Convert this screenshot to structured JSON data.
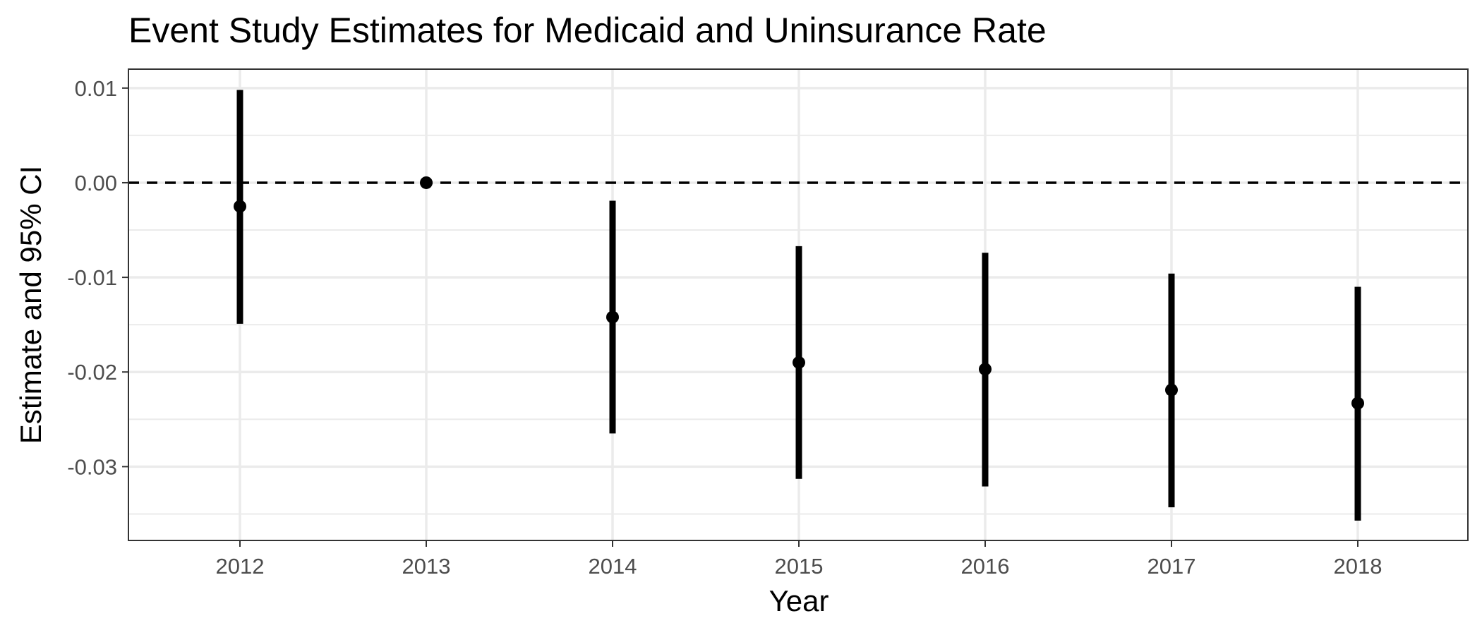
{
  "chart_data": {
    "type": "scatter",
    "title": "Event Study Estimates for Medicaid and Uninsurance Rate",
    "xlabel": "Year",
    "ylabel": "Estimate and 95% CI",
    "categories": [
      "2012",
      "2013",
      "2014",
      "2015",
      "2016",
      "2017",
      "2018"
    ],
    "ylim": [
      -0.0378,
      0.012
    ],
    "yticks": [
      0.01,
      0.0,
      -0.01,
      -0.02,
      -0.03
    ],
    "ytick_labels": [
      "0.01",
      "0.00",
      "-0.01",
      "-0.02",
      "-0.03"
    ],
    "reference_line": 0.0,
    "grid": true,
    "series": [
      {
        "estimate": [
          -0.0025,
          0.0,
          -0.0142,
          -0.019,
          -0.0197,
          -0.0219,
          -0.0233
        ],
        "ci_low": [
          -0.0149,
          null,
          -0.0265,
          -0.0313,
          -0.0321,
          -0.0343,
          -0.0357
        ],
        "ci_high": [
          0.0098,
          null,
          -0.0019,
          -0.0067,
          -0.0074,
          -0.0096,
          -0.011
        ]
      }
    ],
    "colors": {
      "marks": "#000000",
      "grid": "#ebebeb",
      "panel_border": "#333333",
      "tick_text": "#4d4d4d"
    }
  }
}
